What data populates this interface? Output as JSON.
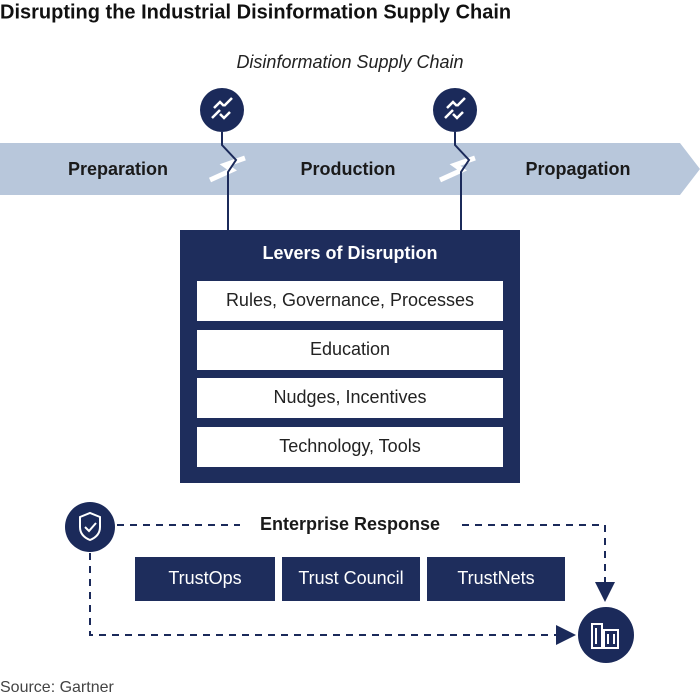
{
  "title": "Disrupting the Industrial Disinformation Supply Chain",
  "subtitle": "Disinformation Supply Chain",
  "stages": [
    "Preparation",
    "Production",
    "Propagation"
  ],
  "levers": {
    "title": "Levers of Disruption",
    "items": [
      "Rules, Governance, Processes",
      "Education",
      "Nudges, Incentives",
      "Technology, Tools"
    ]
  },
  "enterprise_response": {
    "title": "Enterprise Response",
    "items": [
      "TrustOps",
      "Trust Council",
      "TrustNets"
    ]
  },
  "source": "Source: Gartner"
}
